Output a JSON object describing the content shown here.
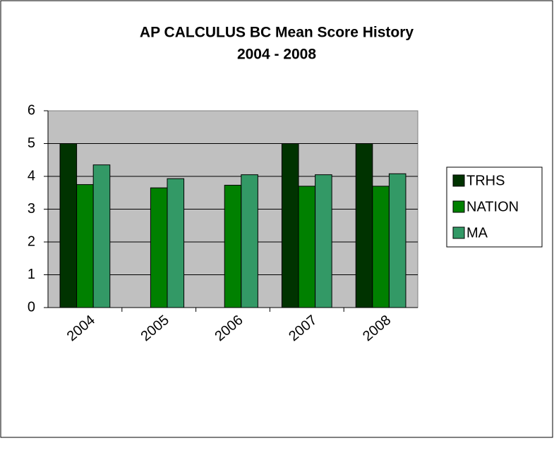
{
  "chart_data": {
    "type": "bar",
    "title": "AP CALCULUS BC Mean Score History",
    "subtitle": "2004 - 2008",
    "categories": [
      "2004",
      "2005",
      "2006",
      "2007",
      "2008"
    ],
    "series": [
      {
        "name": "TRHS",
        "color": "#003300",
        "values": [
          5,
          null,
          null,
          5,
          5
        ]
      },
      {
        "name": "NATION",
        "color": "#008000",
        "values": [
          3.75,
          3.65,
          3.73,
          3.7,
          3.7
        ]
      },
      {
        "name": "MA",
        "color": "#339966",
        "values": [
          4.35,
          3.93,
          4.05,
          4.05,
          4.08
        ]
      }
    ],
    "ylim": [
      0,
      6
    ],
    "yticks": [
      0,
      1,
      2,
      3,
      4,
      5,
      6
    ],
    "grid": true,
    "legend": "right"
  }
}
